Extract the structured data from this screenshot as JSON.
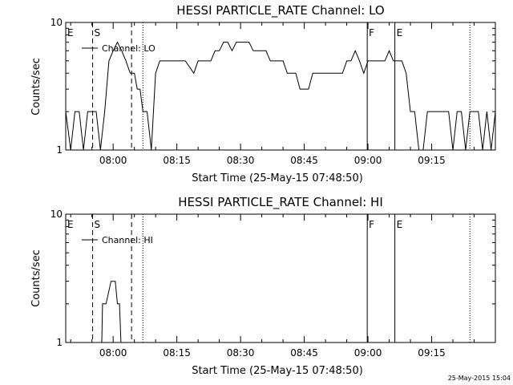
{
  "footer": {
    "timestamp": "25-May-2015 15:04"
  },
  "chart_data": [
    {
      "type": "line",
      "title": "HESSI PARTICLE_RATE Channel: LO",
      "xlabel": "Start Time (25-May-15 07:48:50)",
      "ylabel": "Counts/sec",
      "yscale": "log",
      "ylim": [
        1,
        10
      ],
      "xlim": [
        "07:48:50",
        "09:30:00"
      ],
      "x_ticks": [
        "08:00",
        "08:15",
        "08:30",
        "08:45",
        "09:00",
        "09:15"
      ],
      "y_ticks": [
        "1",
        "10"
      ],
      "legend": {
        "entries": [
          "Channel: LO"
        ],
        "placement": "top-left"
      },
      "vertical_markers": [
        {
          "time": "07:48:50",
          "label": "E",
          "style": "solid"
        },
        {
          "time": "07:55:10",
          "label": "S",
          "style": "dashed"
        },
        {
          "time": "08:04:20",
          "label": "",
          "style": "dashed"
        },
        {
          "time": "08:07:00",
          "label": "",
          "style": "dotted"
        },
        {
          "time": "08:59:50",
          "label": "F",
          "style": "solid"
        },
        {
          "time": "09:06:20",
          "label": "E",
          "style": "solid"
        },
        {
          "time": "09:24:00",
          "label": "",
          "style": "dotted"
        }
      ],
      "series": [
        {
          "name": "Channel: LO",
          "x": [
            "07:48:50",
            "07:50:00",
            "07:51:00",
            "07:52:00",
            "07:53:00",
            "07:54:00",
            "07:55:00",
            "07:56:00",
            "07:57:00",
            "07:58:00",
            "07:59:00",
            "08:00:00",
            "08:01:00",
            "08:02:00",
            "08:03:00",
            "08:04:00",
            "08:05:00",
            "08:05:40",
            "08:06:20",
            "08:07:00",
            "08:08:00",
            "08:09:00",
            "08:10:00",
            "08:11:00",
            "08:12:00",
            "08:13:00",
            "08:14:00",
            "08:15:00",
            "08:17:00",
            "08:19:00",
            "08:20:00",
            "08:21:00",
            "08:22:00",
            "08:23:00",
            "08:24:00",
            "08:25:00",
            "08:26:00",
            "08:27:00",
            "08:28:00",
            "08:29:00",
            "08:30:00",
            "08:31:00",
            "08:32:00",
            "08:33:00",
            "08:34:00",
            "08:35:00",
            "08:36:00",
            "08:37:00",
            "08:38:00",
            "08:39:00",
            "08:40:00",
            "08:41:00",
            "08:42:00",
            "08:43:00",
            "08:44:00",
            "08:45:00",
            "08:46:00",
            "08:47:00",
            "08:48:00",
            "08:49:00",
            "08:50:00",
            "08:51:00",
            "08:52:00",
            "08:53:00",
            "08:54:00",
            "08:55:00",
            "08:56:00",
            "08:57:00",
            "08:58:00",
            "08:59:00",
            "09:00:00",
            "09:01:00",
            "09:02:00",
            "09:03:00",
            "09:04:00",
            "09:05:00",
            "09:06:00",
            "09:07:00",
            "09:08:00",
            "09:09:00",
            "09:10:00",
            "09:11:00",
            "09:12:00",
            "09:13:00",
            "09:14:00",
            "09:15:00",
            "09:16:00",
            "09:17:00",
            "09:18:00",
            "09:19:00",
            "09:20:00",
            "09:21:00",
            "09:22:00",
            "09:23:00",
            "09:24:00",
            "09:25:00",
            "09:26:00",
            "09:27:00",
            "09:28:00",
            "09:29:00",
            "09:30:00"
          ],
          "y": [
            2,
            1,
            2,
            2,
            1,
            2,
            2,
            2,
            1,
            2,
            5,
            6,
            7,
            6,
            5,
            4,
            4,
            3,
            3,
            2,
            2,
            1,
            4,
            5,
            5,
            5,
            5,
            5,
            5,
            4,
            5,
            5,
            5,
            5,
            6,
            6,
            7,
            7,
            6,
            7,
            7,
            7,
            7,
            6,
            6,
            6,
            6,
            5,
            5,
            5,
            5,
            4,
            4,
            4,
            3,
            3,
            3,
            4,
            4,
            4,
            4,
            4,
            4,
            4,
            4,
            5,
            5,
            6,
            5,
            4,
            5,
            5,
            5,
            5,
            5,
            6,
            5,
            5,
            5,
            4,
            2,
            2,
            1,
            1,
            2,
            2,
            2,
            2,
            2,
            2,
            1,
            2,
            2,
            1,
            2,
            2,
            2,
            1,
            2,
            1,
            2
          ]
        }
      ]
    },
    {
      "type": "line",
      "title": "HESSI PARTICLE_RATE Channel: HI",
      "xlabel": "Start Time (25-May-15 07:48:50)",
      "ylabel": "Counts/sec",
      "yscale": "log",
      "ylim": [
        1,
        10
      ],
      "xlim": [
        "07:48:50",
        "09:30:00"
      ],
      "x_ticks": [
        "08:00",
        "08:15",
        "08:30",
        "08:45",
        "09:00",
        "09:15"
      ],
      "y_ticks": [
        "1",
        "10"
      ],
      "legend": {
        "entries": [
          "Channel: HI"
        ],
        "placement": "top-left"
      },
      "vertical_markers": [
        {
          "time": "07:48:50",
          "label": "E",
          "style": "solid"
        },
        {
          "time": "07:55:10",
          "label": "S",
          "style": "dashed"
        },
        {
          "time": "08:04:20",
          "label": "",
          "style": "dashed"
        },
        {
          "time": "08:07:00",
          "label": "",
          "style": "dotted"
        },
        {
          "time": "08:59:50",
          "label": "F",
          "style": "solid"
        },
        {
          "time": "09:06:20",
          "label": "E",
          "style": "solid"
        },
        {
          "time": "09:24:00",
          "label": "",
          "style": "dotted"
        }
      ],
      "series": [
        {
          "name": "Channel: HI",
          "x": [
            "07:57:20",
            "07:57:30",
            "07:58:20",
            "07:59:30",
            "08:00:30",
            "08:01:00",
            "08:01:30",
            "08:01:50"
          ],
          "y": [
            1,
            2,
            2,
            3,
            3,
            2,
            2,
            1
          ]
        }
      ]
    }
  ]
}
